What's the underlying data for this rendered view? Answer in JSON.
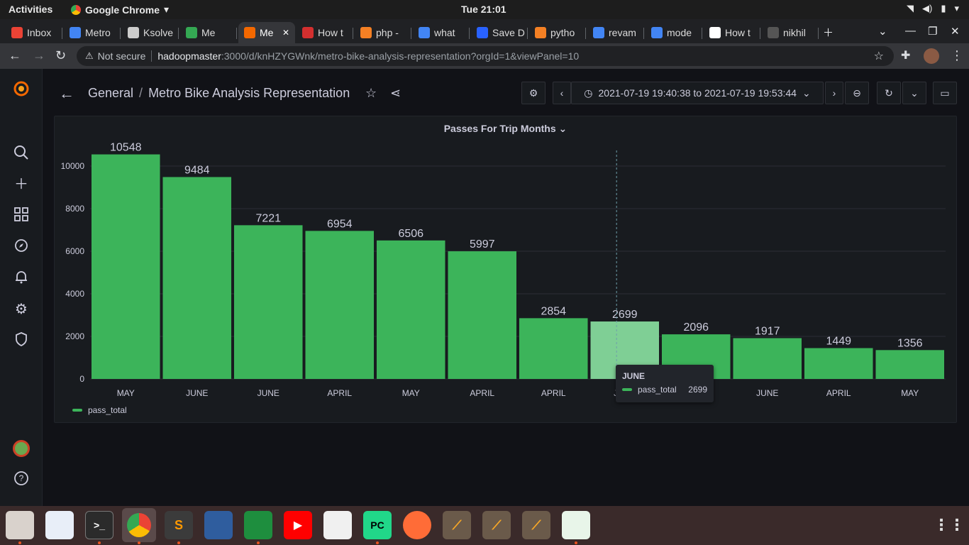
{
  "topbar": {
    "activities": "Activities",
    "app": "Google Chrome",
    "clock": "Tue 21:01"
  },
  "tabs": [
    {
      "label": "Inbox",
      "color": "#ea4335"
    },
    {
      "label": "Metro",
      "color": "#4285f4"
    },
    {
      "label": "Ksolve",
      "color": "#cccccc"
    },
    {
      "label": "Me",
      "color": "#34a853"
    },
    {
      "label": "Me",
      "color": "#f46800",
      "active": true
    },
    {
      "label": "How t",
      "color": "#d32f2f"
    },
    {
      "label": "php -",
      "color": "#f48024"
    },
    {
      "label": "what",
      "color": "#4285f4"
    },
    {
      "label": "Save D",
      "color": "#2962ff"
    },
    {
      "label": "pytho",
      "color": "#f48024"
    },
    {
      "label": "revam",
      "color": "#4285f4"
    },
    {
      "label": "mode",
      "color": "#4285f4"
    },
    {
      "label": "How t",
      "color": "#ffffff"
    },
    {
      "label": "nikhil",
      "color": "#555555"
    }
  ],
  "address": {
    "warning": "Not secure",
    "host": "hadoopmaster",
    "path": ":3000/d/knHZYGWnk/metro-bike-analysis-representation?orgId=1&viewPanel=10"
  },
  "dashboard": {
    "folder": "General",
    "separator": "/",
    "title": "Metro Bike Analysis Representation",
    "time_range": "2021-07-19 19:40:38 to 2021-07-19 19:53:44"
  },
  "panel": {
    "title": "Passes For Trip Months",
    "title_caret": "⌄"
  },
  "chart_data": {
    "type": "bar",
    "categories": [
      "MAY",
      "JUNE",
      "JUNE",
      "APRIL",
      "MAY",
      "APRIL",
      "APRIL",
      "JUNE",
      "MAY",
      "JUNE",
      "APRIL",
      "MAY"
    ],
    "series": [
      {
        "name": "pass_total",
        "values": [
          10548,
          9484,
          7221,
          6954,
          6506,
          5997,
          2854,
          2699,
          2096,
          1917,
          1449,
          1356
        ]
      }
    ],
    "ylim": [
      0,
      11000
    ],
    "yticks": [
      0,
      2000,
      4000,
      6000,
      8000,
      10000
    ],
    "grid": true,
    "legend": "bottom-left",
    "highlighted_index": 7,
    "bar_color": "#3cb45a",
    "highlight_color": "#7fcf95"
  },
  "tooltip": {
    "title": "JUNE",
    "series": "pass_total",
    "value": "2699"
  }
}
